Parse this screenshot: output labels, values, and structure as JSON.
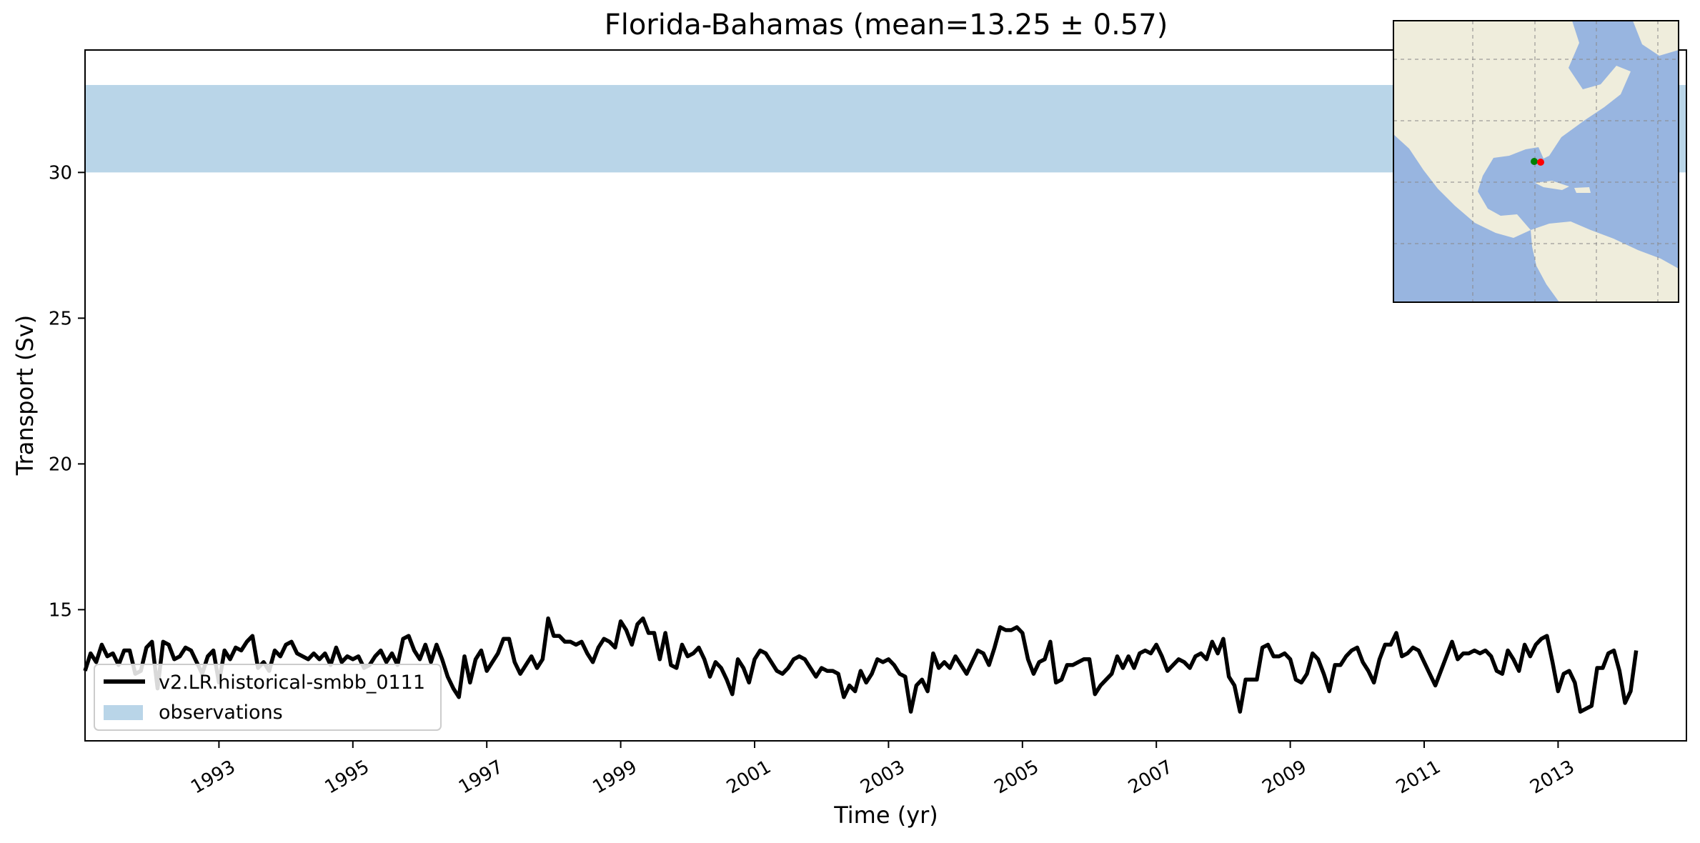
{
  "chart_data": {
    "type": "line",
    "title": "Florida-Bahamas (mean=13.25 ± 0.57)",
    "xlabel": "Time (yr)",
    "ylabel": "Transport (Sv)",
    "xlim": [
      "1991-01",
      "2014-12"
    ],
    "ylim": [
      10.5,
      34.2
    ],
    "x_ticks": [
      "1993",
      "1995",
      "1997",
      "1999",
      "2001",
      "2003",
      "2005",
      "2007",
      "2009",
      "2011",
      "2013"
    ],
    "y_ticks": [
      15,
      20,
      25,
      30
    ],
    "grid": false,
    "legend_position": "lower-left",
    "observation_band": {
      "label": "observations",
      "ymin": 30,
      "ymax": 33,
      "color": "#b9d5e8"
    },
    "series": [
      {
        "name": "v2.LR.historical-smbb_0111",
        "color": "#000000",
        "x_start": "1991-01",
        "x_step": "1 month",
        "values": [
          12.9,
          13.5,
          13.2,
          13.8,
          13.4,
          13.5,
          13.1,
          13.6,
          13.6,
          12.8,
          12.9,
          13.7,
          13.9,
          12.3,
          13.9,
          13.8,
          13.3,
          13.4,
          13.7,
          13.6,
          13.2,
          12.8,
          13.4,
          13.6,
          12.5,
          13.6,
          13.3,
          13.7,
          13.6,
          13.9,
          14.1,
          13.0,
          13.2,
          12.9,
          13.6,
          13.4,
          13.8,
          13.9,
          13.5,
          13.4,
          13.3,
          13.5,
          13.3,
          13.5,
          13.1,
          13.7,
          13.2,
          13.4,
          13.3,
          13.4,
          13.0,
          13.1,
          13.4,
          13.6,
          13.2,
          13.5,
          13.1,
          14.0,
          14.1,
          13.6,
          13.3,
          13.8,
          13.2,
          13.8,
          13.3,
          12.7,
          12.3,
          12.0,
          13.4,
          12.5,
          13.3,
          13.6,
          12.9,
          13.2,
          13.5,
          14.0,
          14.0,
          13.2,
          12.8,
          13.1,
          13.4,
          13.0,
          13.3,
          14.7,
          14.1,
          14.1,
          13.9,
          13.9,
          13.8,
          13.9,
          13.5,
          13.2,
          13.7,
          14.0,
          13.9,
          13.7,
          14.6,
          14.3,
          13.8,
          14.5,
          14.7,
          14.2,
          14.2,
          13.3,
          14.2,
          13.1,
          13.0,
          13.8,
          13.4,
          13.5,
          13.7,
          13.3,
          12.7,
          13.2,
          13.0,
          12.6,
          12.1,
          13.3,
          13.0,
          12.5,
          13.3,
          13.6,
          13.5,
          13.2,
          12.9,
          12.8,
          13.0,
          13.3,
          13.4,
          13.3,
          13.0,
          12.7,
          13.0,
          12.9,
          12.9,
          12.8,
          12.0,
          12.4,
          12.2,
          12.9,
          12.5,
          12.8,
          13.3,
          13.2,
          13.3,
          13.1,
          12.8,
          12.7,
          11.5,
          12.4,
          12.6,
          12.2,
          13.5,
          13.0,
          13.2,
          13.0,
          13.4,
          13.1,
          12.8,
          13.2,
          13.6,
          13.5,
          13.1,
          13.7,
          14.4,
          14.3,
          14.3,
          14.4,
          14.2,
          13.3,
          12.8,
          13.2,
          13.3,
          13.9,
          12.5,
          12.6,
          13.1,
          13.1,
          13.2,
          13.3,
          13.3,
          12.1,
          12.4,
          12.6,
          12.8,
          13.4,
          13.0,
          13.4,
          13.0,
          13.5,
          13.6,
          13.5,
          13.8,
          13.4,
          12.9,
          13.1,
          13.3,
          13.2,
          13.0,
          13.4,
          13.5,
          13.3,
          13.9,
          13.5,
          14.0,
          12.7,
          12.4,
          11.5,
          12.6,
          12.6,
          12.6,
          13.7,
          13.8,
          13.4,
          13.4,
          13.5,
          13.3,
          12.6,
          12.5,
          12.8,
          13.5,
          13.3,
          12.8,
          12.2,
          13.1,
          13.1,
          13.4,
          13.6,
          13.7,
          13.2,
          12.9,
          12.5,
          13.3,
          13.8,
          13.8,
          14.2,
          13.4,
          13.5,
          13.7,
          13.6,
          13.2,
          12.8,
          12.4,
          12.9,
          13.4,
          13.9,
          13.3,
          13.5,
          13.5,
          13.6,
          13.5,
          13.6,
          13.4,
          12.9,
          12.8,
          13.6,
          13.3,
          12.9,
          13.8,
          13.4,
          13.8,
          14.0,
          14.1,
          13.2,
          12.2,
          12.8,
          12.9,
          12.5,
          11.5,
          11.6,
          11.7,
          13.0,
          13.0,
          13.5,
          13.6,
          12.9,
          11.8,
          12.2,
          13.6
        ]
      }
    ]
  },
  "inset_map": {
    "land_color": "#efeddc",
    "ocean_color": "#98b5e0",
    "markers": [
      {
        "name": "Florida",
        "color": "#008000"
      },
      {
        "name": "Bahamas",
        "color": "#ff0000"
      }
    ]
  }
}
